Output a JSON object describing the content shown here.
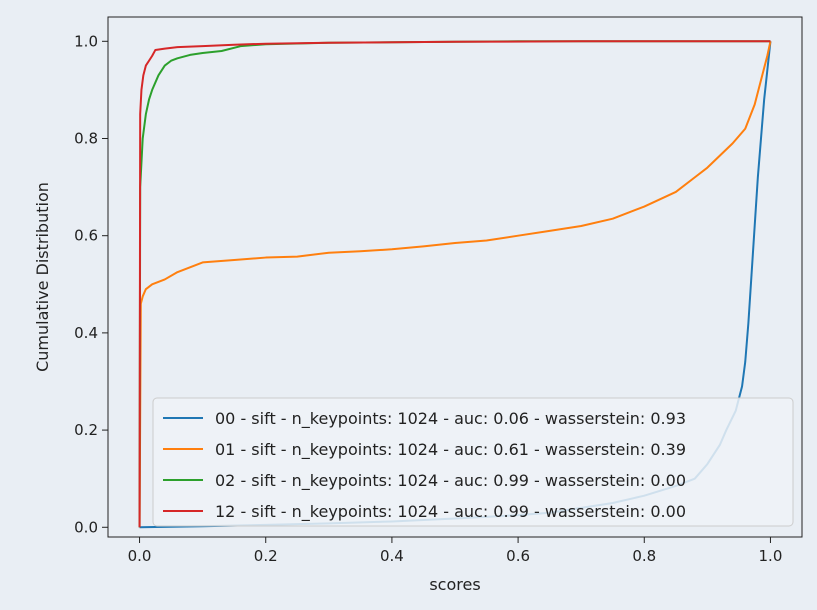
{
  "chart_data": {
    "type": "line",
    "title": "",
    "xlabel": "scores",
    "ylabel": "Cumulative Distribution",
    "xlim": [
      -0.05,
      1.05
    ],
    "ylim": [
      -0.02,
      1.05
    ],
    "xticks": [
      0.0,
      0.2,
      0.4,
      0.6,
      0.8,
      1.0
    ],
    "xtick_labels": [
      "0.0",
      "0.2",
      "0.4",
      "0.6",
      "0.8",
      "1.0"
    ],
    "yticks": [
      0.0,
      0.2,
      0.4,
      0.6,
      0.8,
      1.0
    ],
    "ytick_labels": [
      "0.0",
      "0.2",
      "0.4",
      "0.6",
      "0.8",
      "1.0"
    ],
    "grid": false,
    "legend_position": "lower-right",
    "series": [
      {
        "name": "00 - sift - n_keypoints: 1024 - auc: 0.06 - wasserstein: 0.93",
        "color": "#1f77b4",
        "points": [
          [
            0.0,
            0.0
          ],
          [
            0.1,
            0.002
          ],
          [
            0.2,
            0.005
          ],
          [
            0.3,
            0.008
          ],
          [
            0.4,
            0.012
          ],
          [
            0.5,
            0.018
          ],
          [
            0.6,
            0.025
          ],
          [
            0.65,
            0.03
          ],
          [
            0.7,
            0.04
          ],
          [
            0.75,
            0.05
          ],
          [
            0.8,
            0.065
          ],
          [
            0.85,
            0.085
          ],
          [
            0.88,
            0.1
          ],
          [
            0.9,
            0.13
          ],
          [
            0.92,
            0.17
          ],
          [
            0.93,
            0.2
          ],
          [
            0.945,
            0.24
          ],
          [
            0.955,
            0.29
          ],
          [
            0.96,
            0.34
          ],
          [
            0.965,
            0.42
          ],
          [
            0.97,
            0.52
          ],
          [
            0.975,
            0.62
          ],
          [
            0.98,
            0.72
          ],
          [
            0.985,
            0.8
          ],
          [
            0.99,
            0.88
          ],
          [
            0.995,
            0.94
          ],
          [
            1.0,
            1.0
          ]
        ]
      },
      {
        "name": "01 - sift - n_keypoints: 1024 - auc: 0.61 - wasserstein: 0.39",
        "color": "#ff7f0e",
        "points": [
          [
            0.0,
            0.0
          ],
          [
            0.002,
            0.46
          ],
          [
            0.005,
            0.475
          ],
          [
            0.01,
            0.49
          ],
          [
            0.02,
            0.5
          ],
          [
            0.04,
            0.51
          ],
          [
            0.06,
            0.525
          ],
          [
            0.08,
            0.535
          ],
          [
            0.1,
            0.545
          ],
          [
            0.15,
            0.55
          ],
          [
            0.2,
            0.555
          ],
          [
            0.25,
            0.557
          ],
          [
            0.3,
            0.565
          ],
          [
            0.35,
            0.568
          ],
          [
            0.4,
            0.572
          ],
          [
            0.45,
            0.578
          ],
          [
            0.5,
            0.585
          ],
          [
            0.55,
            0.59
          ],
          [
            0.6,
            0.6
          ],
          [
            0.65,
            0.61
          ],
          [
            0.7,
            0.62
          ],
          [
            0.75,
            0.635
          ],
          [
            0.8,
            0.66
          ],
          [
            0.85,
            0.69
          ],
          [
            0.88,
            0.72
          ],
          [
            0.9,
            0.74
          ],
          [
            0.92,
            0.765
          ],
          [
            0.94,
            0.79
          ],
          [
            0.96,
            0.82
          ],
          [
            0.975,
            0.87
          ],
          [
            0.985,
            0.92
          ],
          [
            0.995,
            0.97
          ],
          [
            1.0,
            1.0
          ]
        ]
      },
      {
        "name": "02 - sift - n_keypoints: 1024 - auc: 0.99 - wasserstein: 0.00",
        "color": "#2ca02c",
        "points": [
          [
            0.0,
            0.0
          ],
          [
            0.001,
            0.7
          ],
          [
            0.005,
            0.8
          ],
          [
            0.01,
            0.85
          ],
          [
            0.015,
            0.88
          ],
          [
            0.02,
            0.9
          ],
          [
            0.03,
            0.93
          ],
          [
            0.04,
            0.95
          ],
          [
            0.05,
            0.96
          ],
          [
            0.06,
            0.965
          ],
          [
            0.08,
            0.972
          ],
          [
            0.1,
            0.976
          ],
          [
            0.13,
            0.98
          ],
          [
            0.16,
            0.99
          ],
          [
            0.2,
            0.994
          ],
          [
            0.3,
            0.997
          ],
          [
            0.4,
            0.998
          ],
          [
            0.5,
            0.999
          ],
          [
            0.6,
            1.0
          ],
          [
            0.8,
            1.0
          ],
          [
            1.0,
            1.0
          ]
        ]
      },
      {
        "name": "12 - sift - n_keypoints: 1024 - auc: 0.99 - wasserstein: 0.00",
        "color": "#d62728",
        "points": [
          [
            0.0,
            0.0
          ],
          [
            0.001,
            0.85
          ],
          [
            0.003,
            0.9
          ],
          [
            0.006,
            0.93
          ],
          [
            0.01,
            0.95
          ],
          [
            0.015,
            0.96
          ],
          [
            0.02,
            0.97
          ],
          [
            0.025,
            0.982
          ],
          [
            0.04,
            0.985
          ],
          [
            0.06,
            0.988
          ],
          [
            0.1,
            0.99
          ],
          [
            0.15,
            0.993
          ],
          [
            0.2,
            0.995
          ],
          [
            0.3,
            0.997
          ],
          [
            0.5,
            0.999
          ],
          [
            0.7,
            1.0
          ],
          [
            1.0,
            1.0
          ]
        ]
      }
    ]
  }
}
